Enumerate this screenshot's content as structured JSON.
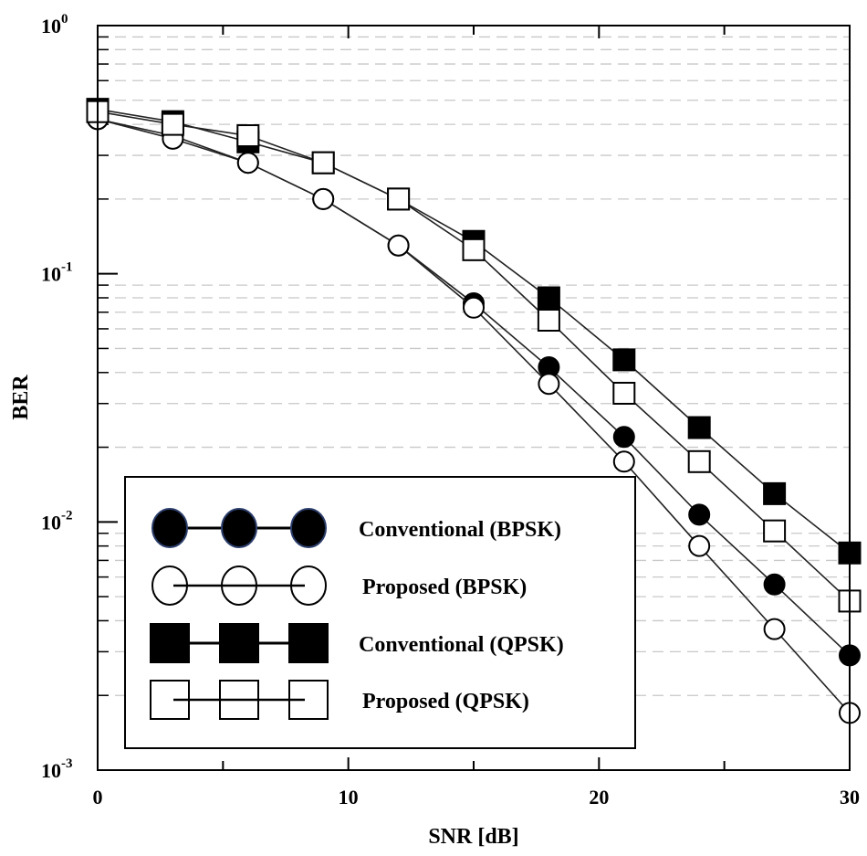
{
  "chart_data": {
    "type": "line",
    "title": "",
    "xlabel": "SNR [dB]",
    "ylabel": "BER",
    "yscale": "log",
    "xlim": [
      0,
      30
    ],
    "ylim": [
      0.001,
      1
    ],
    "grid": true,
    "legend_position": "bottom-left",
    "x_ticks": [
      {
        "value": 0,
        "label": "0"
      },
      {
        "value": 10,
        "label": "10"
      },
      {
        "value": 20,
        "label": "20"
      },
      {
        "value": 30,
        "label": "30"
      }
    ],
    "y_ticks": [
      {
        "value": 1,
        "base": "10",
        "exp": "0"
      },
      {
        "value": 0.1,
        "base": "10",
        "exp": "-1"
      },
      {
        "value": 0.01,
        "base": "10",
        "exp": "-2"
      },
      {
        "value": 0.001,
        "base": "10",
        "exp": "-3"
      }
    ],
    "x": [
      0,
      3,
      6,
      9,
      12,
      15,
      18,
      21,
      24,
      27,
      30
    ],
    "series": [
      {
        "name": "Conventional (BPSK)",
        "marker": "circle",
        "filled": true,
        "values": [
          0.42,
          0.36,
          0.28,
          0.2,
          0.13,
          0.076,
          0.042,
          0.022,
          0.0107,
          0.0056,
          0.0029
        ]
      },
      {
        "name": "Proposed (BPSK)",
        "marker": "circle",
        "filled": false,
        "values": [
          0.42,
          0.35,
          0.28,
          0.2,
          0.13,
          0.073,
          0.036,
          0.0175,
          0.008,
          0.0037,
          0.0017
        ]
      },
      {
        "name": "Conventional (QPSK)",
        "marker": "square",
        "filled": true,
        "values": [
          0.46,
          0.41,
          0.34,
          0.28,
          0.2,
          0.135,
          0.08,
          0.045,
          0.024,
          0.013,
          0.0075
        ]
      },
      {
        "name": "Proposed (QPSK)",
        "marker": "square",
        "filled": false,
        "values": [
          0.45,
          0.4,
          0.36,
          0.28,
          0.2,
          0.125,
          0.065,
          0.033,
          0.0175,
          0.0092,
          0.0048
        ]
      }
    ]
  }
}
